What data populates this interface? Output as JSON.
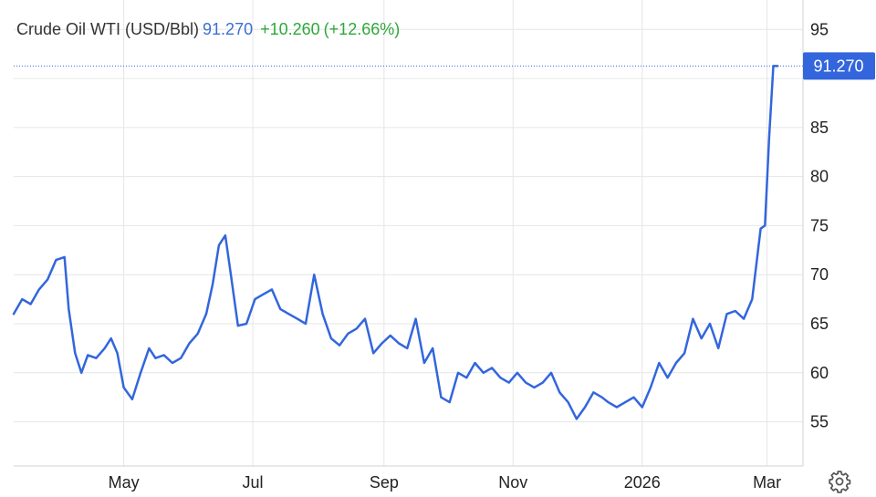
{
  "legend": {
    "name": "Crude Oil WTI (USD/Bbl)",
    "price": "91.270",
    "change": "+10.260",
    "change_pct": "(+12.66%)"
  },
  "last_value_label": "91.270",
  "colors": {
    "line": "#3366dd",
    "price_text": "#3b6fd6",
    "change_text": "#2ea83a",
    "grid": "#e6e6e6",
    "last_label_bg": "#3366dd"
  },
  "settings_icon": "gear-icon",
  "chart_data": {
    "type": "line",
    "ylim": [
      50.5,
      98
    ],
    "yticks": [
      55,
      60,
      65,
      70,
      75,
      80,
      85,
      90,
      95
    ],
    "ytick_labels": [
      "55",
      "60",
      "65",
      "70",
      "75",
      "80",
      "85",
      "",
      "95"
    ],
    "xticks": [
      {
        "date": "2025-05-01",
        "label": "May"
      },
      {
        "date": "2025-07-01",
        "label": "Jul"
      },
      {
        "date": "2025-09-01",
        "label": "Sep"
      },
      {
        "date": "2025-11-01",
        "label": "Nov"
      },
      {
        "date": "2026-01-01",
        "label": "2026"
      },
      {
        "date": "2026-03-01",
        "label": "Mar"
      }
    ],
    "xlim": [
      "2025-03-10",
      "2026-03-18"
    ],
    "last_value": 91.27,
    "grid": true,
    "series": [
      {
        "dates": [
          "2025-03-10",
          "2025-03-14",
          "2025-03-18",
          "2025-03-22",
          "2025-03-26",
          "2025-03-30",
          "2025-04-03",
          "2025-04-05",
          "2025-04-08",
          "2025-04-11",
          "2025-04-14",
          "2025-04-18",
          "2025-04-22",
          "2025-04-25",
          "2025-04-28",
          "2025-05-01",
          "2025-05-05",
          "2025-05-09",
          "2025-05-13",
          "2025-05-16",
          "2025-05-20",
          "2025-05-24",
          "2025-05-28",
          "2025-06-01",
          "2025-06-05",
          "2025-06-09",
          "2025-06-12",
          "2025-06-15",
          "2025-06-18",
          "2025-06-20",
          "2025-06-24",
          "2025-06-28",
          "2025-07-02",
          "2025-07-06",
          "2025-07-10",
          "2025-07-14",
          "2025-07-18",
          "2025-07-22",
          "2025-07-26",
          "2025-07-30",
          "2025-08-03",
          "2025-08-07",
          "2025-08-11",
          "2025-08-15",
          "2025-08-19",
          "2025-08-23",
          "2025-08-27",
          "2025-08-31",
          "2025-09-04",
          "2025-09-08",
          "2025-09-12",
          "2025-09-16",
          "2025-09-20",
          "2025-09-24",
          "2025-09-28",
          "2025-10-02",
          "2025-10-06",
          "2025-10-10",
          "2025-10-14",
          "2025-10-18",
          "2025-10-22",
          "2025-10-26",
          "2025-10-30",
          "2025-11-03",
          "2025-11-07",
          "2025-11-11",
          "2025-11-15",
          "2025-11-19",
          "2025-11-23",
          "2025-11-27",
          "2025-12-01",
          "2025-12-05",
          "2025-12-09",
          "2025-12-13",
          "2025-12-16",
          "2025-12-20",
          "2025-12-24",
          "2025-12-28",
          "2026-01-01",
          "2026-01-05",
          "2026-01-09",
          "2026-01-13",
          "2026-01-17",
          "2026-01-21",
          "2026-01-25",
          "2026-01-29",
          "2026-02-02",
          "2026-02-06",
          "2026-02-10",
          "2026-02-14",
          "2026-02-18",
          "2026-02-22",
          "2026-02-26",
          "2026-02-28",
          "2026-03-02",
          "2026-03-04",
          "2026-03-06"
        ],
        "values": [
          66.0,
          67.5,
          67.0,
          68.5,
          69.5,
          71.5,
          71.8,
          66.5,
          62.0,
          60.0,
          61.8,
          61.5,
          62.5,
          63.5,
          62.0,
          58.5,
          57.3,
          60.0,
          62.5,
          61.5,
          61.8,
          61.0,
          61.5,
          63.0,
          64.0,
          66.0,
          69.0,
          73.0,
          74.0,
          71.0,
          64.8,
          65.0,
          67.5,
          68.0,
          68.5,
          66.5,
          66.0,
          65.5,
          65.0,
          70.0,
          66.0,
          63.5,
          62.8,
          64.0,
          64.5,
          65.5,
          62.0,
          63.0,
          63.8,
          63.0,
          62.5,
          65.5,
          61.0,
          62.5,
          57.5,
          57.0,
          60.0,
          59.5,
          61.0,
          60.0,
          60.5,
          59.5,
          59.0,
          60.0,
          59.0,
          58.5,
          59.0,
          60.0,
          58.0,
          57.0,
          55.3,
          56.5,
          58.0,
          57.5,
          57.0,
          56.5,
          57.0,
          57.5,
          56.5,
          58.5,
          61.0,
          59.5,
          61.0,
          62.0,
          65.5,
          63.5,
          65.0,
          62.5,
          66.0,
          66.3,
          65.5,
          67.5,
          74.7,
          75.0,
          84.0,
          91.27,
          91.27
        ]
      }
    ]
  }
}
